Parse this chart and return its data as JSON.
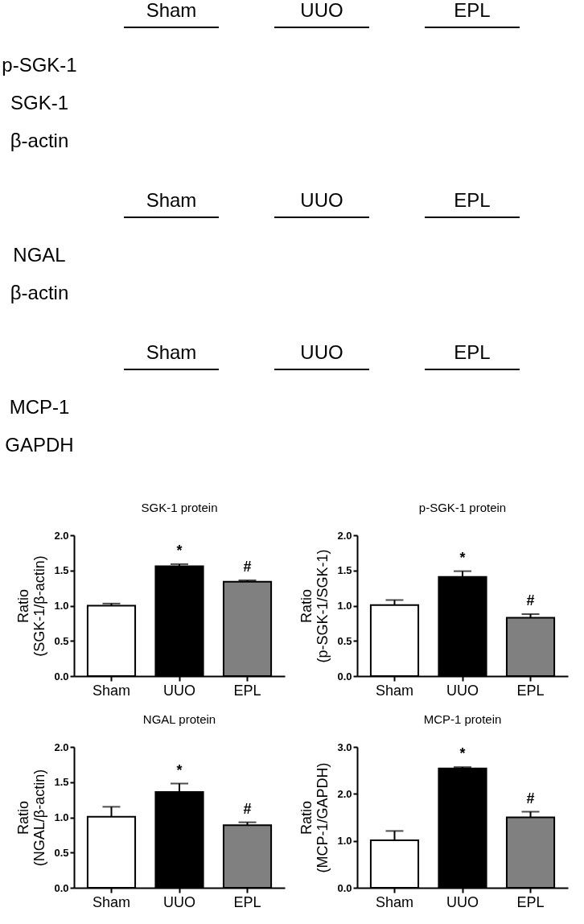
{
  "chart_data": [
    {
      "type": "other",
      "categories": [
        "Sham",
        "UUO",
        "EPL"
      ],
      "y_categories": [
        "p-SGK-1",
        "SGK-1",
        "β-actin"
      ]
    },
    {
      "type": "other",
      "categories": [
        "Sham",
        "UUO",
        "EPL"
      ],
      "y_categories": [
        "NGAL",
        "β-actin"
      ]
    },
    {
      "type": "other",
      "categories": [
        "Sham",
        "UUO",
        "EPL"
      ],
      "y_categories": [
        "MCP-1",
        "GAPDH"
      ]
    },
    {
      "type": "bar",
      "title": "SGK-1 protein",
      "ylabel": "Ratio\n(SGK-1/β-actin)",
      "categories": [
        "Sham",
        "UUO",
        "EPL"
      ],
      "values": [
        1.0,
        1.56,
        1.34
      ],
      "colors": [
        "#ffffff",
        "#000000",
        "#808080"
      ],
      "errors": [
        0.03,
        0.03,
        0.02
      ],
      "ylim": [
        0,
        2
      ],
      "yticks": [
        {
          "value": 0,
          "label": "0.0"
        },
        {
          "value": 0.5,
          "label": "0.5"
        },
        {
          "value": 1,
          "label": "1.0"
        },
        {
          "value": 1.5,
          "label": "1.5"
        },
        {
          "value": 2,
          "label": "2.0"
        }
      ],
      "annotations": [
        {
          "text": "*",
          "x": "UUO",
          "y": 1.59
        },
        {
          "text": "#",
          "x": "EPL",
          "y": 1.36
        }
      ]
    },
    {
      "type": "bar",
      "title": "p-SGK-1 protein",
      "ylabel": "Ratio\n(p-SGK-1/SGK-1)",
      "categories": [
        "Sham",
        "UUO",
        "EPL"
      ],
      "values": [
        1.01,
        1.41,
        0.83
      ],
      "colors": [
        "#ffffff",
        "#000000",
        "#808080"
      ],
      "errors": [
        0.07,
        0.08,
        0.05
      ],
      "ylim": [
        0,
        2
      ],
      "yticks": [
        {
          "value": 0,
          "label": "0.0"
        },
        {
          "value": 0.5,
          "label": "0.5"
        },
        {
          "value": 1,
          "label": "1.0"
        },
        {
          "value": 1.5,
          "label": "1.5"
        },
        {
          "value": 2,
          "label": "2.0"
        }
      ],
      "annotations": [
        {
          "text": "*",
          "x": "UUO",
          "y": 1.49
        },
        {
          "text": "#",
          "x": "EPL",
          "y": 0.88
        }
      ]
    },
    {
      "type": "bar",
      "title": "NGAL protein",
      "ylabel": "Ratio\n(NGAL/β-actin)",
      "categories": [
        "Sham",
        "UUO",
        "EPL"
      ],
      "values": [
        1.01,
        1.36,
        0.89
      ],
      "colors": [
        "#ffffff",
        "#000000",
        "#808080"
      ],
      "errors": [
        0.14,
        0.12,
        0.04
      ],
      "ylim": [
        0,
        2
      ],
      "yticks": [
        {
          "value": 0,
          "label": "0.0"
        },
        {
          "value": 0.5,
          "label": "0.5"
        },
        {
          "value": 1,
          "label": "1.0"
        },
        {
          "value": 1.5,
          "label": "1.5"
        },
        {
          "value": 2,
          "label": "2.0"
        }
      ],
      "annotations": [
        {
          "text": "*",
          "x": "UUO",
          "y": 1.48
        },
        {
          "text": "#",
          "x": "EPL",
          "y": 0.93
        }
      ]
    },
    {
      "type": "bar",
      "title": "MCP-1 protein",
      "ylabel": "Ratio\n(MCP-1/GAPDH)",
      "categories": [
        "Sham",
        "UUO",
        "EPL"
      ],
      "values": [
        1.01,
        2.54,
        1.5
      ],
      "colors": [
        "#ffffff",
        "#000000",
        "#808080"
      ],
      "errors": [
        0.2,
        0.03,
        0.12
      ],
      "ylim": [
        0,
        3
      ],
      "yticks": [
        {
          "value": 0,
          "label": "0.0"
        },
        {
          "value": 1,
          "label": "1.0"
        },
        {
          "value": 2,
          "label": "2.0"
        },
        {
          "value": 3,
          "label": "3.0"
        }
      ],
      "annotations": [
        {
          "text": "*",
          "x": "UUO",
          "y": 2.57
        },
        {
          "text": "#",
          "x": "EPL",
          "y": 1.62
        }
      ]
    }
  ]
}
